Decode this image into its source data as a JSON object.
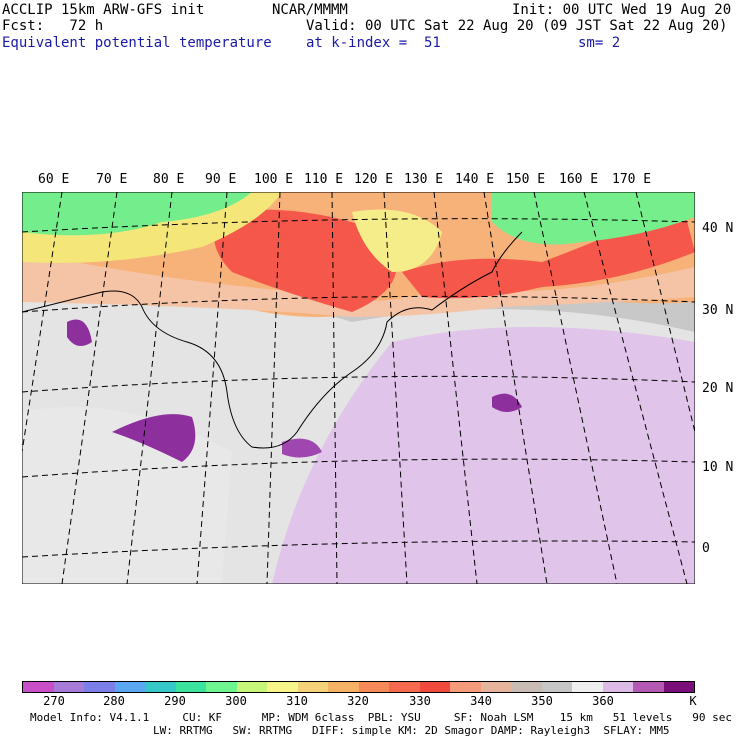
{
  "header": {
    "model": "ACCLIP 15km ARW-GFS init",
    "center": "NCAR/MMMM",
    "init": "Init: 00 UTC Wed 19 Aug 20",
    "fcst": "Fcst:   72 h",
    "valid": "Valid: 00 UTC Sat 22 Aug 20 (09 JST Sat 22 Aug 20)",
    "field": "Equivalent potential temperature",
    "level": "at k-index =  51",
    "smooth": "sm= 2"
  },
  "map": {
    "lon_labels": [
      "60 E",
      "70 E",
      "80 E",
      "90 E",
      "100 E",
      "110 E",
      "120 E",
      "130 E",
      "140 E",
      "150 E",
      "160 E",
      "170 E"
    ],
    "lat_labels": [
      "40 N",
      "30 N",
      "20 N",
      "10 N",
      "0"
    ]
  },
  "colorbar": {
    "colors": [
      "#c84fc8",
      "#a77bd8",
      "#7d7fe8",
      "#5aa7f0",
      "#36c8c8",
      "#3be39c",
      "#6ff58f",
      "#c7f57a",
      "#f5f58a",
      "#f5d27a",
      "#f5b266",
      "#f58a58",
      "#f56a4f",
      "#f04a3e",
      "#f59a7a",
      "#e6b49c",
      "#c8bcb4",
      "#c6c6c6",
      "#eeeeee",
      "#dcbce6",
      "#b45ab4",
      "#7a0f7a"
    ],
    "labels": [
      "270",
      "280",
      "290",
      "300",
      "310",
      "320",
      "330",
      "340",
      "350",
      "360",
      "K"
    ]
  },
  "footer": {
    "line1": "Model Info: V4.1.1     CU: KF      MP: WDM 6class  PBL: YSU     SF: Noah LSM    15 km   51 levels   90 sec",
    "line2": "LW: RRTMG   SW: RRTMG   DIFF: simple KM: 2D Smagor DAMP: Rayleigh3  SFLAY: MM5"
  }
}
